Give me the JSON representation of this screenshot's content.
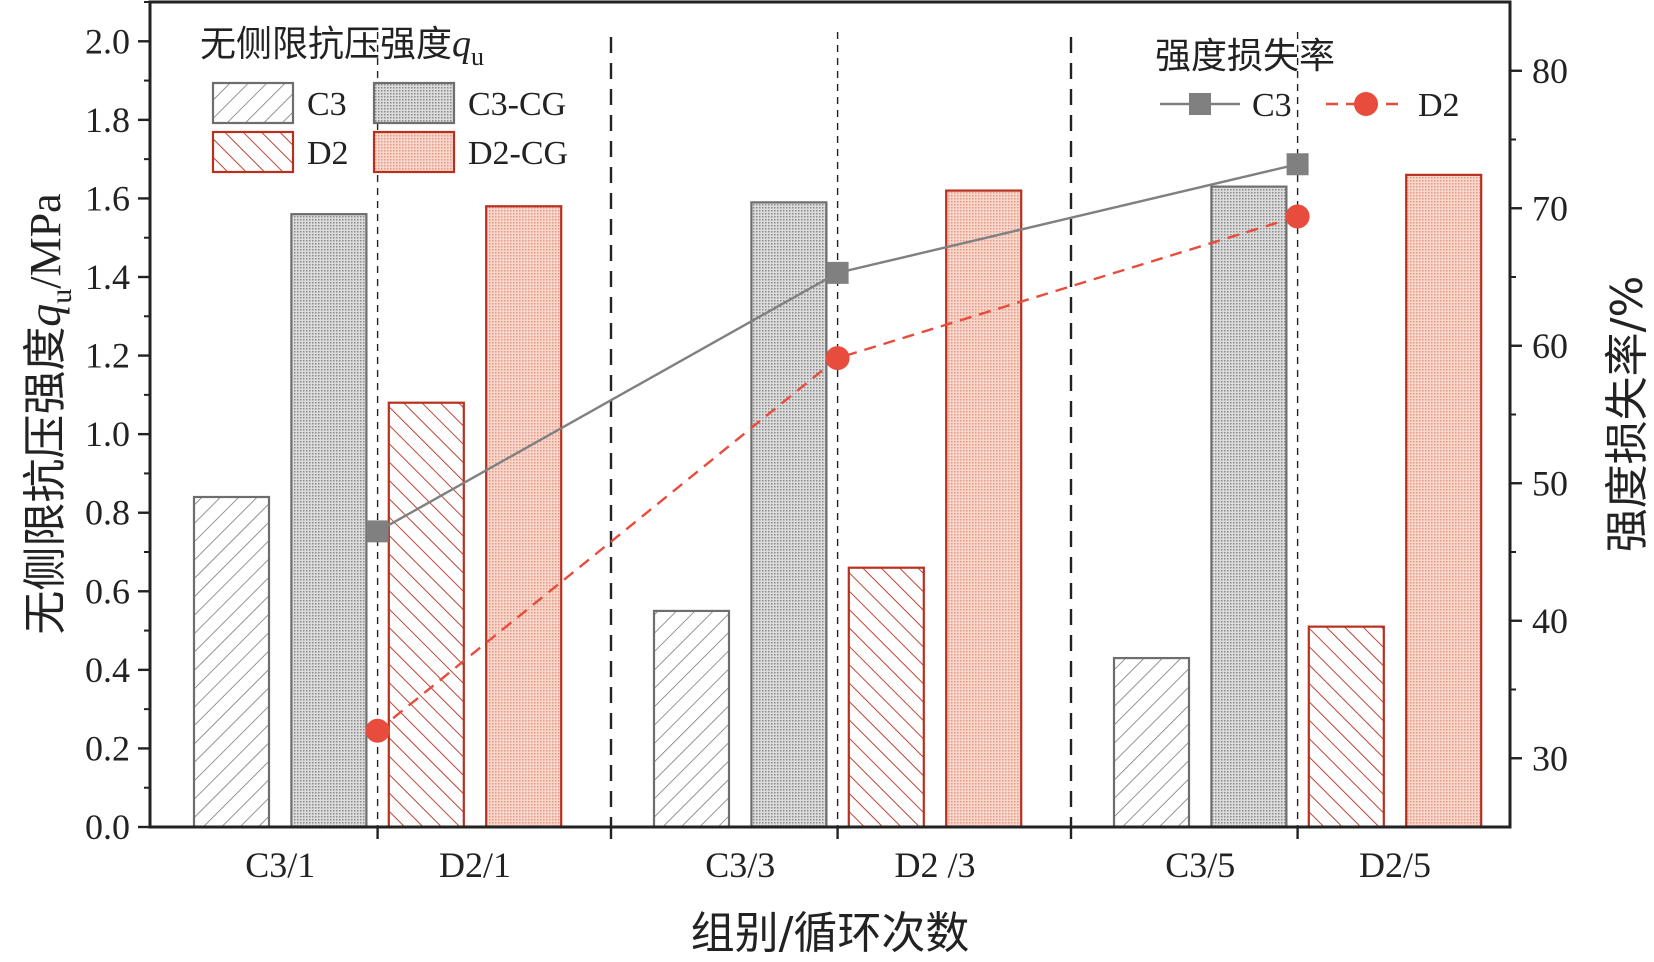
{
  "chart_data": {
    "type": "bar",
    "xlabel": "组别/循环次数",
    "ylabel": "无侧限抗压强度q_u/MPa",
    "ylabel_parts": {
      "prefix": "无侧限抗压强度",
      "var": "q",
      "sub": "u",
      "suffix": "/MPa"
    },
    "y2label": "强度损失率/%",
    "ylim": [
      0,
      2.1
    ],
    "y2lim": [
      25,
      85
    ],
    "yticks": [
      "0.0",
      "0.2",
      "0.4",
      "0.6",
      "0.8",
      "1.0",
      "1.2",
      "1.4",
      "1.6",
      "1.8",
      "2.0"
    ],
    "y2ticks": [
      "30",
      "40",
      "50",
      "60",
      "70",
      "80"
    ],
    "categories": [
      "C3/1",
      "D2/1",
      "C3/3",
      "D2 /3",
      "C3/5",
      "D2/5"
    ],
    "bar_legend_title": {
      "prefix": "无侧限抗压强度",
      "var": "q",
      "sub": "u"
    },
    "line_legend_title": "强度损失率",
    "bar_series": [
      {
        "name": "C3",
        "style": "hatch-grey",
        "values": [
          0.84,
          0.55,
          0.43
        ]
      },
      {
        "name": "C3-CG",
        "style": "dots-grey",
        "values": [
          1.56,
          1.59,
          1.63
        ]
      },
      {
        "name": "D2",
        "style": "hatch-red",
        "values": [
          1.08,
          0.66,
          0.51
        ]
      },
      {
        "name": "D2-CG",
        "style": "dots-red",
        "values": [
          1.58,
          1.62,
          1.66
        ]
      }
    ],
    "line_series": [
      {
        "name": "C3",
        "marker": "square",
        "dash": "solid",
        "values": [
          46.5,
          65.3,
          73.2
        ]
      },
      {
        "name": "D2",
        "marker": "circle",
        "dash": "dashed",
        "values": [
          32.0,
          59.1,
          69.4
        ]
      }
    ],
    "colors": {
      "axis": "#222222",
      "grey_stroke": "#6e6e6e",
      "grey_fill_dots": "#c9c9c9",
      "red_stroke": "#b8301e",
      "red_fill_dots": "#f3c3b5",
      "line_c3": "#808080",
      "line_d2": "#e84c3d"
    }
  }
}
